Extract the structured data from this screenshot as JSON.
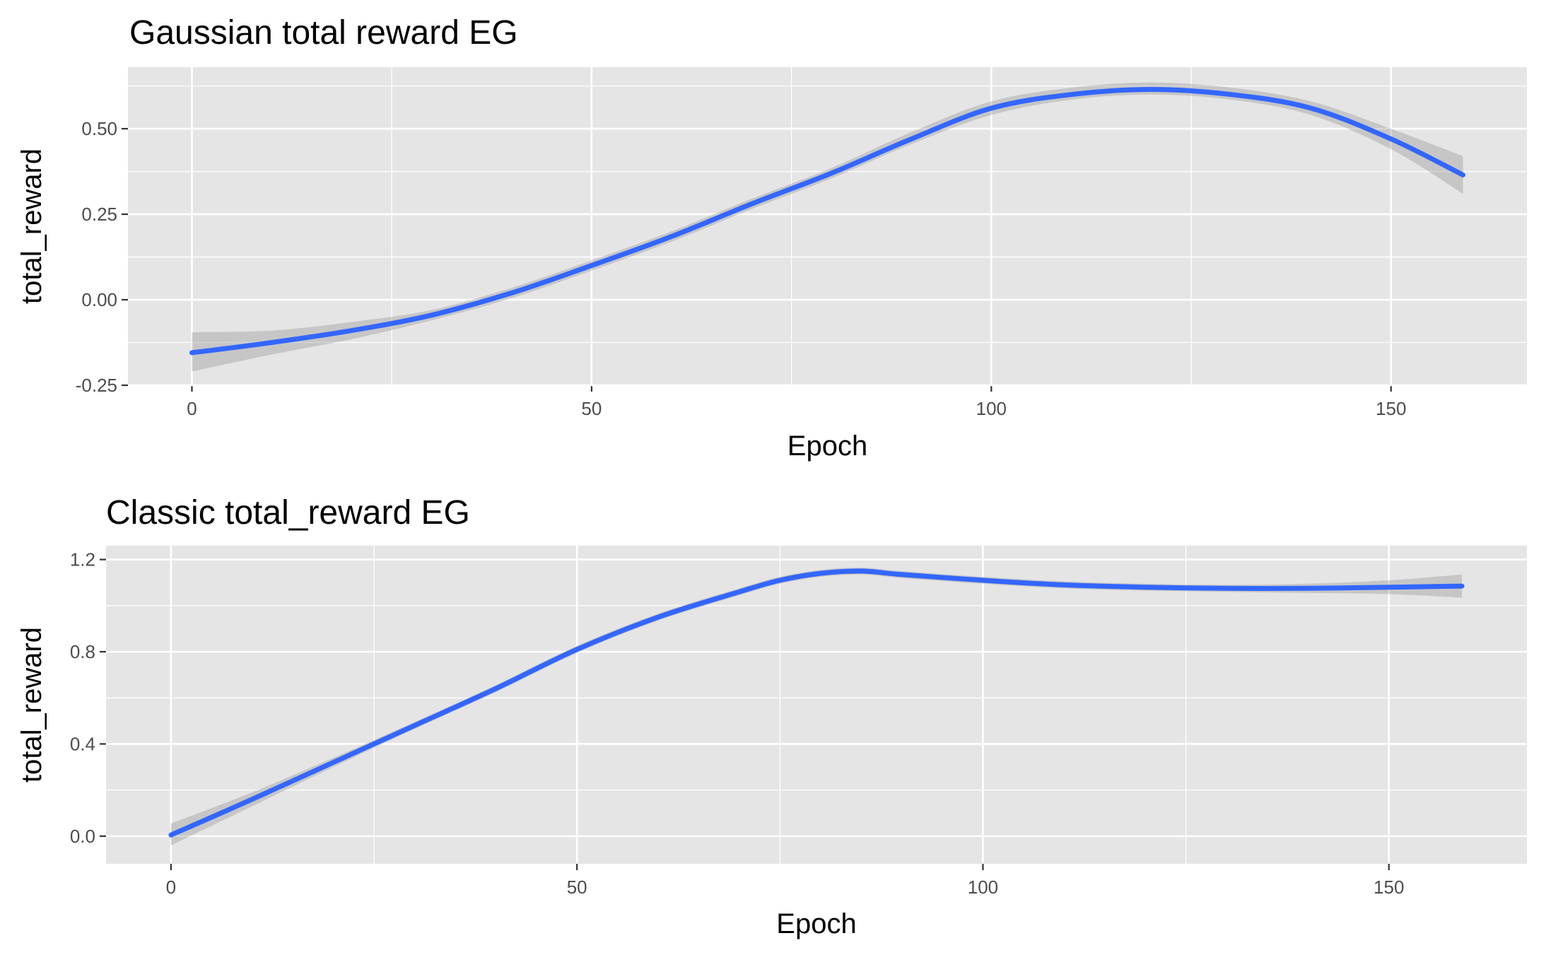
{
  "colors": {
    "panel": "#e5e5e5",
    "grid": "#ffffff",
    "line": "#3366ff",
    "ribbon": "#999999"
  },
  "chart_data": [
    {
      "type": "line",
      "title": "Gaussian total reward EG",
      "xlabel": "Epoch",
      "ylabel": "total_reward",
      "xlim": [
        -8,
        167
      ],
      "ylim": [
        -0.25,
        0.68
      ],
      "x_ticks": [
        0,
        50,
        100,
        150
      ],
      "x_tick_labels": [
        "0",
        "50",
        "100",
        "150"
      ],
      "y_ticks": [
        -0.25,
        0,
        0.25,
        0.5
      ],
      "y_tick_labels": [
        "-0.25",
        "0.00",
        "0.25",
        "0.50"
      ],
      "grid": true,
      "series": [
        {
          "x": [
            0,
            10,
            20,
            30,
            40,
            50,
            60,
            70,
            80,
            90,
            100,
            110,
            120,
            130,
            140,
            150,
            159
          ],
          "y": [
            -0.155,
            -0.125,
            -0.09,
            -0.045,
            0.02,
            0.1,
            0.185,
            0.28,
            0.37,
            0.47,
            0.56,
            0.6,
            0.615,
            0.6,
            0.56,
            0.47,
            0.365
          ],
          "lower": [
            -0.21,
            -0.16,
            -0.115,
            -0.06,
            0.005,
            0.085,
            0.17,
            0.265,
            0.355,
            0.455,
            0.54,
            0.585,
            0.6,
            0.585,
            0.54,
            0.44,
            0.31
          ],
          "upper": [
            -0.095,
            -0.09,
            -0.065,
            -0.03,
            0.035,
            0.115,
            0.2,
            0.295,
            0.385,
            0.49,
            0.58,
            0.62,
            0.635,
            0.62,
            0.58,
            0.5,
            0.42
          ]
        }
      ]
    },
    {
      "type": "line",
      "title": "Classic total_reward EG",
      "xlabel": "Epoch",
      "ylabel": "total_reward",
      "xlim": [
        -8,
        167
      ],
      "ylim": [
        -0.12,
        1.26
      ],
      "x_ticks": [
        0,
        50,
        100,
        150
      ],
      "x_tick_labels": [
        "0",
        "50",
        "100",
        "150"
      ],
      "y_ticks": [
        0,
        0.4,
        0.8,
        1.2
      ],
      "y_tick_labels": [
        "0.0",
        "0.4",
        "0.8",
        "1.2"
      ],
      "grid": true,
      "series": [
        {
          "x": [
            0,
            10,
            20,
            30,
            40,
            50,
            60,
            70,
            75,
            80,
            85,
            90,
            100,
            110,
            120,
            130,
            140,
            150,
            159
          ],
          "y": [
            0.005,
            0.16,
            0.32,
            0.48,
            0.64,
            0.81,
            0.95,
            1.06,
            1.11,
            1.14,
            1.15,
            1.135,
            1.11,
            1.09,
            1.08,
            1.075,
            1.075,
            1.08,
            1.085
          ],
          "lower": [
            -0.04,
            0.13,
            0.3,
            0.465,
            0.625,
            0.795,
            0.935,
            1.045,
            1.095,
            1.125,
            1.135,
            1.12,
            1.095,
            1.075,
            1.065,
            1.06,
            1.055,
            1.05,
            1.035
          ],
          "upper": [
            0.055,
            0.19,
            0.34,
            0.495,
            0.655,
            0.825,
            0.965,
            1.075,
            1.125,
            1.155,
            1.165,
            1.15,
            1.125,
            1.105,
            1.095,
            1.09,
            1.095,
            1.11,
            1.135
          ]
        }
      ]
    }
  ]
}
